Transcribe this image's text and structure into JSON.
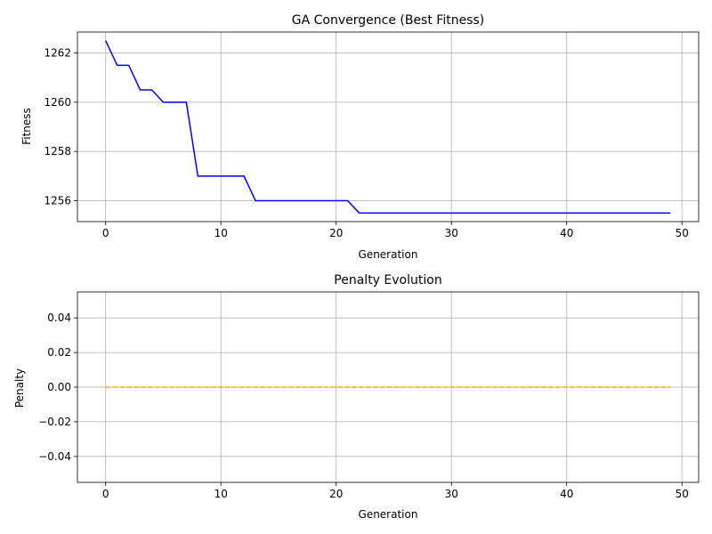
{
  "chart_data": [
    {
      "type": "line",
      "title": "GA Convergence (Best Fitness)",
      "xlabel": "Generation",
      "ylabel": "Fitness",
      "xlim": [
        -2.45,
        51.45
      ],
      "ylim": [
        1255.15,
        1262.85
      ],
      "xticks": [
        0,
        10,
        20,
        30,
        40,
        50
      ],
      "xtick_labels": [
        "0",
        "10",
        "20",
        "30",
        "40",
        "50"
      ],
      "yticks": [
        1256,
        1258,
        1260,
        1262
      ],
      "ytick_labels": [
        "1256",
        "1258",
        "1260",
        "1262"
      ],
      "grid": true,
      "series": [
        {
          "color": "#0000ff",
          "linestyle": "solid",
          "x": [
            0,
            1,
            2,
            3,
            4,
            5,
            6,
            7,
            8,
            9,
            10,
            11,
            12,
            13,
            14,
            15,
            16,
            17,
            18,
            19,
            20,
            21,
            22,
            23,
            24,
            25,
            26,
            27,
            28,
            29,
            30,
            31,
            32,
            33,
            34,
            35,
            36,
            37,
            38,
            39,
            40,
            41,
            42,
            43,
            44,
            45,
            46,
            47,
            48,
            49
          ],
          "y": [
            1262.5,
            1261.5,
            1261.5,
            1260.5,
            1260.5,
            1260.0,
            1260.0,
            1260.0,
            1257.0,
            1257.0,
            1257.0,
            1257.0,
            1257.0,
            1256.0,
            1256.0,
            1256.0,
            1256.0,
            1256.0,
            1256.0,
            1256.0,
            1256.0,
            1256.0,
            1255.5,
            1255.5,
            1255.5,
            1255.5,
            1255.5,
            1255.5,
            1255.5,
            1255.5,
            1255.5,
            1255.5,
            1255.5,
            1255.5,
            1255.5,
            1255.5,
            1255.5,
            1255.5,
            1255.5,
            1255.5,
            1255.5,
            1255.5,
            1255.5,
            1255.5,
            1255.5,
            1255.5,
            1255.5,
            1255.5,
            1255.5,
            1255.5
          ]
        }
      ]
    },
    {
      "type": "line",
      "title": "Penalty Evolution",
      "xlabel": "Generation",
      "ylabel": "Penalty",
      "xlim": [
        -2.45,
        51.45
      ],
      "ylim": [
        -0.055,
        0.055
      ],
      "xticks": [
        0,
        10,
        20,
        30,
        40,
        50
      ],
      "xtick_labels": [
        "0",
        "10",
        "20",
        "30",
        "40",
        "50"
      ],
      "yticks": [
        -0.04,
        -0.02,
        0.0,
        0.02,
        0.04
      ],
      "ytick_labels": [
        "−0.04",
        "−0.02",
        "0.00",
        "0.02",
        "0.04"
      ],
      "grid": true,
      "series": [
        {
          "color": "#ffa500",
          "linestyle": "dashed",
          "x": [
            0,
            1,
            2,
            3,
            4,
            5,
            6,
            7,
            8,
            9,
            10,
            11,
            12,
            13,
            14,
            15,
            16,
            17,
            18,
            19,
            20,
            21,
            22,
            23,
            24,
            25,
            26,
            27,
            28,
            29,
            30,
            31,
            32,
            33,
            34,
            35,
            36,
            37,
            38,
            39,
            40,
            41,
            42,
            43,
            44,
            45,
            46,
            47,
            48,
            49
          ],
          "y": [
            0,
            0,
            0,
            0,
            0,
            0,
            0,
            0,
            0,
            0,
            0,
            0,
            0,
            0,
            0,
            0,
            0,
            0,
            0,
            0,
            0,
            0,
            0,
            0,
            0,
            0,
            0,
            0,
            0,
            0,
            0,
            0,
            0,
            0,
            0,
            0,
            0,
            0,
            0,
            0,
            0,
            0,
            0,
            0,
            0,
            0,
            0,
            0,
            0,
            0
          ]
        }
      ]
    }
  ],
  "style": {
    "grid_color": "#b0b0b0",
    "axis_color": "#000000",
    "background": "#ffffff"
  }
}
